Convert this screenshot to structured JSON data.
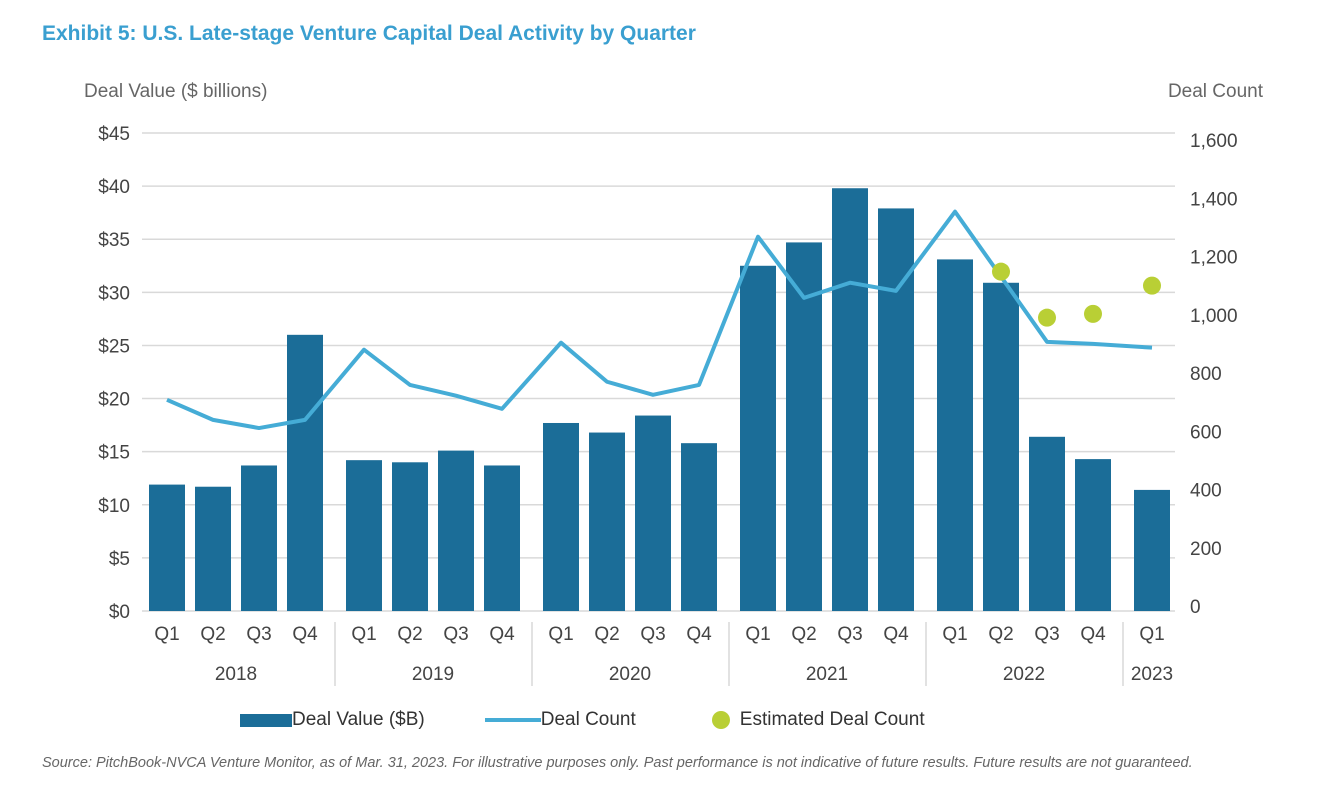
{
  "chart_data": {
    "type": "bar+line",
    "title": "Exhibit 5: U.S. Late-stage Venture Capital Deal Activity by Quarter",
    "ylabel": "Deal Value ($ billions)",
    "y2label": "Deal Count",
    "ylim": [
      0,
      45
    ],
    "y2lim": [
      0,
      1600
    ],
    "yticks": [
      "$0",
      "$5",
      "$10",
      "$15",
      "$20",
      "$25",
      "$30",
      "$35",
      "$40",
      "$45"
    ],
    "y2ticks": [
      "0",
      "200",
      "400",
      "600",
      "800",
      "1,000",
      "1,200",
      "1,400",
      "1,600"
    ],
    "grid": true,
    "legend_position": "bottom",
    "years": [
      "2018",
      "2019",
      "2020",
      "2021",
      "2022",
      "2023"
    ],
    "categories": [
      "Q1",
      "Q2",
      "Q3",
      "Q4",
      "Q1",
      "Q2",
      "Q3",
      "Q4",
      "Q1",
      "Q2",
      "Q3",
      "Q4",
      "Q1",
      "Q2",
      "Q3",
      "Q4",
      "Q1",
      "Q2",
      "Q3",
      "Q4",
      "Q1"
    ],
    "category_years": [
      "2018",
      "2018",
      "2018",
      "2018",
      "2019",
      "2019",
      "2019",
      "2019",
      "2020",
      "2020",
      "2020",
      "2020",
      "2021",
      "2021",
      "2021",
      "2021",
      "2022",
      "2022",
      "2022",
      "2022",
      "2023"
    ],
    "series": [
      {
        "name": "Deal Value ($B)",
        "type": "bar",
        "axis": "left",
        "color": "#1b6d98",
        "values": [
          11.9,
          11.7,
          13.7,
          26.0,
          14.2,
          14.0,
          15.1,
          13.7,
          17.7,
          16.8,
          18.4,
          15.8,
          32.5,
          34.7,
          39.8,
          37.9,
          33.1,
          30.9,
          16.4,
          14.3,
          11.4
        ]
      },
      {
        "name": "Deal Count",
        "type": "line",
        "axis": "right",
        "color": "#45acd6",
        "values": [
          708,
          639,
          611,
          639,
          880,
          759,
          722,
          677,
          904,
          770,
          725,
          759,
          1268,
          1058,
          1110,
          1082,
          1354,
          1131,
          907,
          900,
          887
        ]
      },
      {
        "name": "Estimated Deal Count",
        "type": "scatter",
        "axis": "right",
        "color": "#b9cf35",
        "values": [
          null,
          null,
          null,
          null,
          null,
          null,
          null,
          null,
          null,
          null,
          null,
          null,
          null,
          null,
          null,
          null,
          null,
          1148,
          990,
          1003,
          1100
        ]
      }
    ]
  },
  "source": "Source: PitchBook-NVCA Venture Monitor, as of Mar. 31, 2023. For illustrative purposes only. Past performance is not indicative of future results. Future results are not guaranteed."
}
